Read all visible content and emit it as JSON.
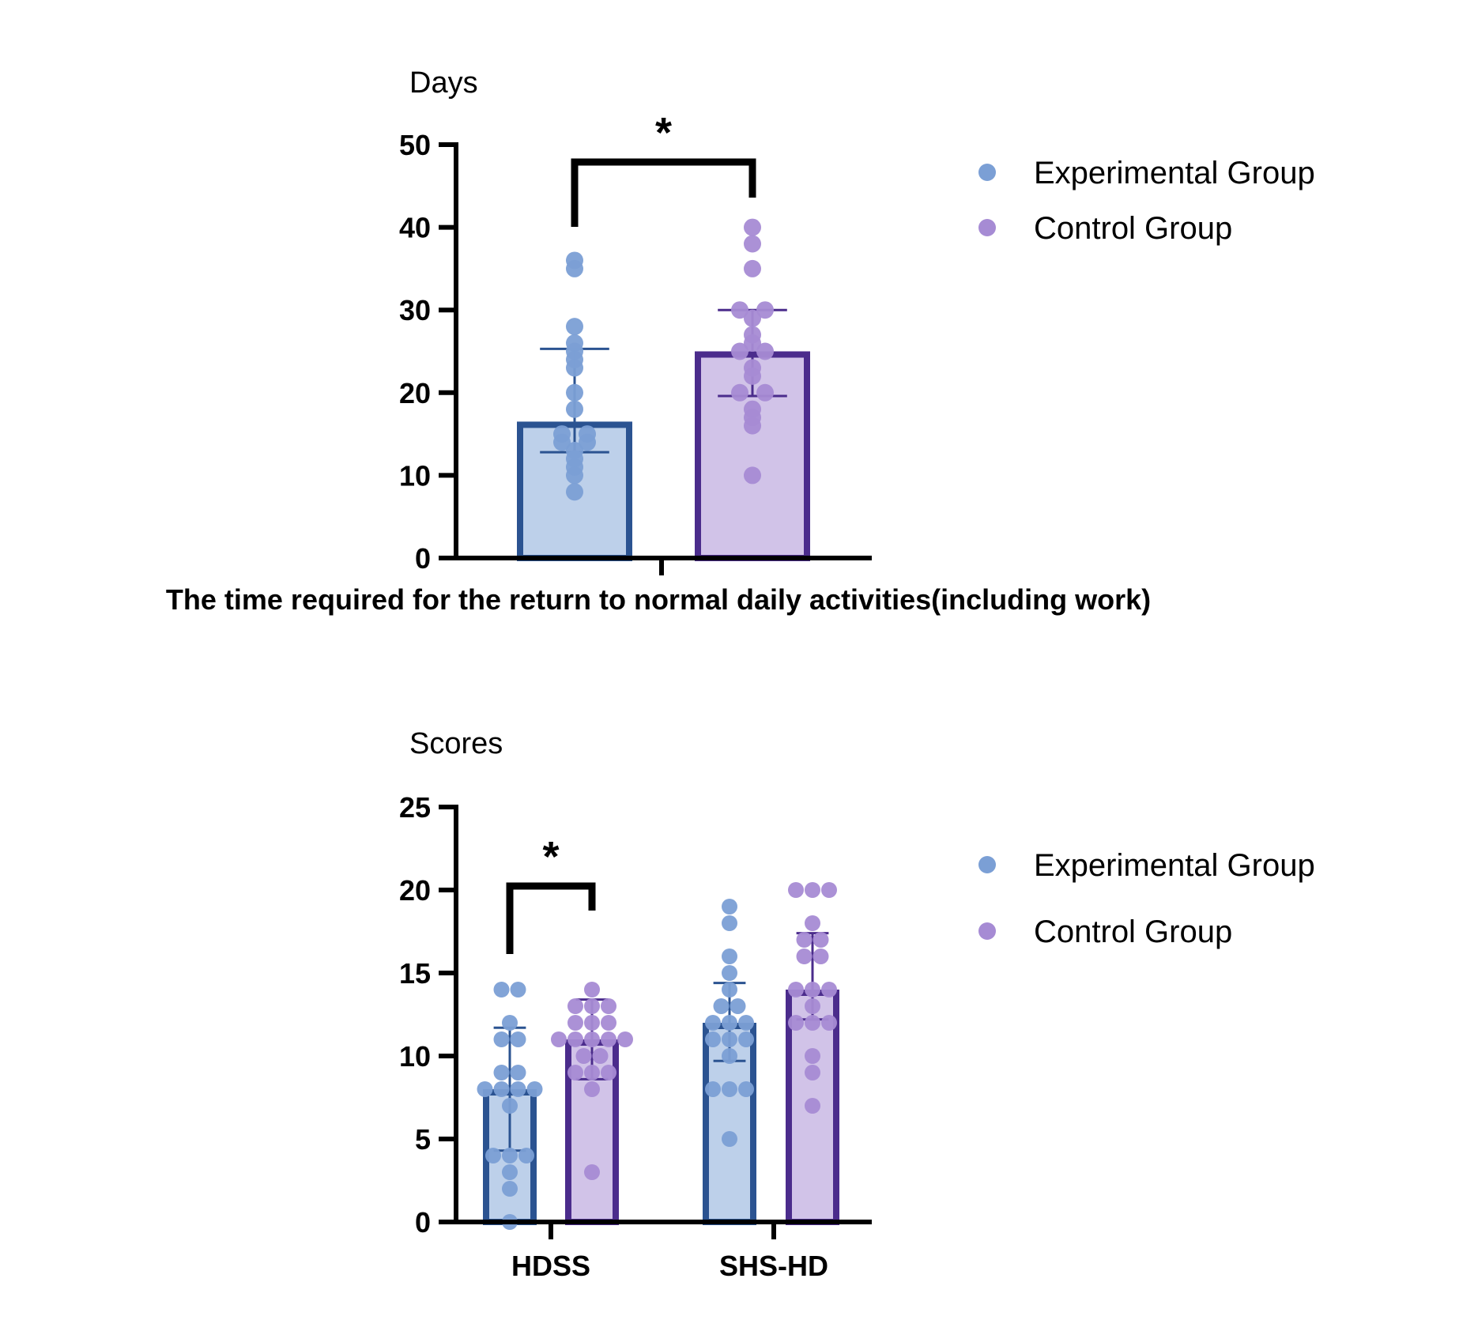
{
  "colors": {
    "experimental_fill": "#bdd0ea",
    "experimental_border": "#2b5391",
    "experimental_dot": "#7b9fd5",
    "control_fill": "#d1c3e8",
    "control_border": "#4b2c8c",
    "control_dot": "#a68bd4",
    "axis": "#000000"
  },
  "chart_data": [
    {
      "type": "bar",
      "title": "",
      "xlabel": "The time required for the return to normal daily activities(including work)",
      "ylabel": "Days",
      "ylim": [
        0,
        50
      ],
      "yticks": [
        "0",
        "10",
        "20",
        "30",
        "40",
        "50"
      ],
      "grid": false,
      "legend": {
        "position": "right",
        "entries": [
          "Experimental Group",
          "Control Group"
        ]
      },
      "categories": [
        ""
      ],
      "series": [
        {
          "name": "Experimental Group",
          "values": [
            16.5
          ],
          "error": [
            [
              12.8,
              25.3
            ]
          ],
          "points": [
            [
              36,
              35,
              28,
              26,
              25,
              24,
              23,
              20,
              18,
              15,
              15,
              14,
              14,
              13,
              12,
              11,
              10,
              8
            ]
          ]
        },
        {
          "name": "Control Group",
          "values": [
            25
          ],
          "error": [
            [
              19.6,
              30
            ]
          ],
          "points": [
            [
              40,
              38,
              35,
              30,
              30,
              29,
              27,
              26,
              25,
              25,
              23,
              22,
              20,
              20,
              18,
              17,
              16,
              10
            ]
          ]
        }
      ],
      "annotations": [
        {
          "text": "*",
          "between": [
            "Experimental Group",
            "Control Group"
          ],
          "category": 0
        }
      ]
    },
    {
      "type": "bar",
      "title": "",
      "xlabel": "",
      "ylabel": "Scores",
      "ylim": [
        0,
        25
      ],
      "yticks": [
        "0",
        "5",
        "10",
        "15",
        "20",
        "25"
      ],
      "grid": false,
      "legend": {
        "position": "right",
        "entries": [
          "Experimental Group",
          "Control Group"
        ]
      },
      "categories": [
        "HDSS",
        "SHS-HD"
      ],
      "series": [
        {
          "name": "Experimental Group",
          "values": [
            8,
            12
          ],
          "error": [
            [
              4.3,
              11.7
            ],
            [
              9.7,
              14.4
            ]
          ],
          "points": [
            [
              14,
              14,
              12,
              11,
              11,
              9,
              9,
              8,
              8,
              8,
              8,
              7,
              4,
              4,
              4,
              3,
              2,
              0
            ],
            [
              19,
              18,
              16,
              15,
              14,
              13,
              13,
              12,
              12,
              12,
              11,
              11,
              11,
              10,
              8,
              8,
              8,
              5
            ]
          ]
        },
        {
          "name": "Control Group",
          "values": [
            11,
            14
          ],
          "error": [
            [
              8.6,
              13.4
            ],
            [
              12.2,
              17.4
            ]
          ],
          "points": [
            [
              14,
              13,
              13,
              13,
              12,
              12,
              12,
              11,
              11,
              11,
              11,
              11,
              10,
              10,
              9,
              9,
              9,
              8,
              3
            ],
            [
              20,
              20,
              20,
              18,
              17,
              17,
              16,
              16,
              14,
              14,
              14,
              13,
              12,
              12,
              12,
              10,
              9,
              7
            ]
          ]
        }
      ],
      "annotations": [
        {
          "text": "*",
          "between": [
            "Experimental Group",
            "Control Group"
          ],
          "category": 0
        }
      ]
    }
  ]
}
